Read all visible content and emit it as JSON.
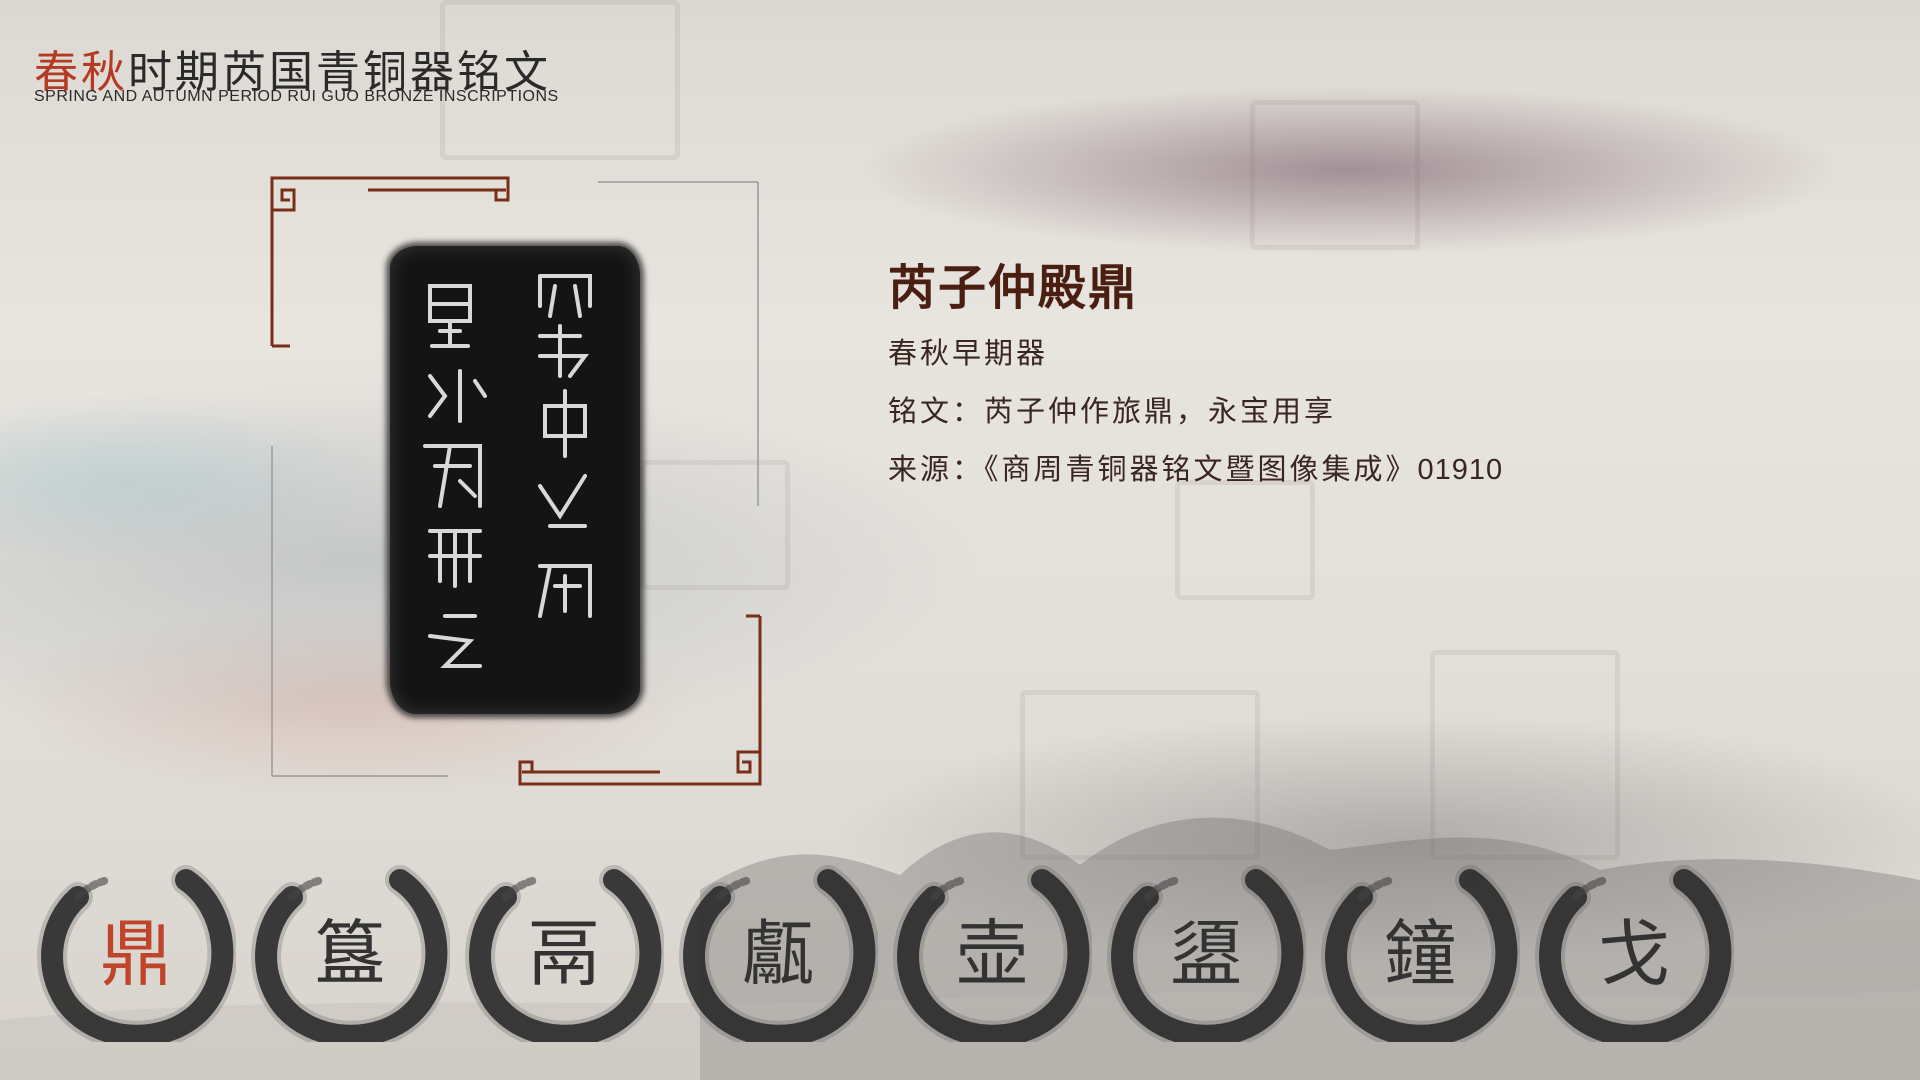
{
  "header": {
    "title_red": "春秋",
    "title_rest": "时期芮国青铜器铭文",
    "subtitle_en": "SPRING AND AUTUMN PERIOD RUI GUO BRONZE INSCRIPTIONS"
  },
  "item": {
    "name": "芮子仲殿鼎",
    "period": "春秋早期器",
    "inscription_label": "铭文：",
    "inscription": "芮子仲作旅鼎，永宝用享",
    "source_label": "来源：",
    "source": "《商周青铜器铭文暨图像集成》",
    "source_no": "01910"
  },
  "categories": [
    {
      "glyph": "鼎",
      "active": true
    },
    {
      "glyph": "簋",
      "active": false
    },
    {
      "glyph": "鬲",
      "active": false
    },
    {
      "glyph": "甗",
      "active": false
    },
    {
      "glyph": "壶",
      "active": false
    },
    {
      "glyph": "盨",
      "active": false
    },
    {
      "glyph": "鐘",
      "active": false
    },
    {
      "glyph": "戈",
      "active": false
    }
  ],
  "colors": {
    "accent_red": "#b43a24",
    "frame_brown": "#7a2e17",
    "title_brown": "#4a1f12"
  }
}
